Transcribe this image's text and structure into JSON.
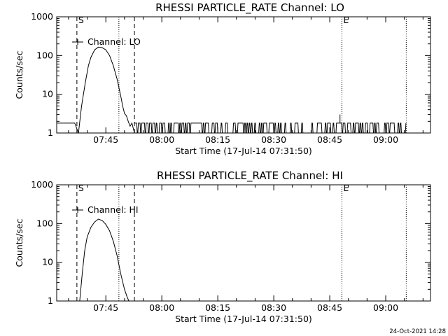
{
  "footer_timestamp": "24-Oct-2021 14:28",
  "chart_data": [
    {
      "type": "line",
      "title": "RHESSI PARTICLE_RATE Channel: LO",
      "xlabel": "Start Time (17-Jul-14 07:31:50)",
      "ylabel": "Counts/sec",
      "yscale": "log",
      "xlim": [
        "07:31:50",
        "09:12:00"
      ],
      "ylim": [
        1,
        1000
      ],
      "x_ticks": [
        "07:45",
        "08:00",
        "08:15",
        "08:30",
        "08:45",
        "09:00"
      ],
      "y_ticks": [
        "1",
        "10",
        "100",
        "1000"
      ],
      "markers": [
        {
          "time": "07:37:15",
          "label": "S",
          "style": "dashed"
        },
        {
          "time": "07:48:30",
          "label": "",
          "style": "dotted"
        },
        {
          "time": "07:52:40",
          "label": "",
          "style": "dashed"
        },
        {
          "time": "08:48:15",
          "label": "E",
          "style": "dotted"
        },
        {
          "time": "09:05:30",
          "label": "",
          "style": "dotted"
        }
      ],
      "legend": "Channel: LO",
      "series": [
        {
          "name": "Channel: LO",
          "burst": {
            "time": [
              "07:31:50",
              "07:34:00",
              "07:36:40",
              "07:37:40",
              "07:38:30",
              "07:39:30",
              "07:40:20",
              "07:41:00",
              "07:42:00",
              "07:43:00",
              "07:44:00",
              "07:45:00",
              "07:46:00",
              "07:47:00",
              "07:48:00",
              "07:49:00",
              "07:49:30",
              "07:50:00",
              "07:50:30",
              "07:51:00",
              "07:51:30",
              "07:52:00",
              "07:52:40"
            ],
            "counts": [
              1.8,
              1.8,
              1.8,
              1.0,
              5,
              20,
              55,
              90,
              140,
              165,
              160,
              140,
              100,
              55,
              25,
              9,
              5,
              3.2,
              2.8,
              2,
              1.5,
              1.8,
              1.0
            ]
          },
          "background_levels": [
            1.0,
            1.8
          ],
          "background_range": [
            "07:52:40",
            "09:05:30"
          ],
          "spike": {
            "time": "08:47:45",
            "counts": 3.0
          }
        }
      ]
    },
    {
      "type": "line",
      "title": "RHESSI PARTICLE_RATE Channel: HI",
      "xlabel": "Start Time (17-Jul-14 07:31:50)",
      "ylabel": "Counts/sec",
      "yscale": "log",
      "xlim": [
        "07:31:50",
        "09:12:00"
      ],
      "ylim": [
        1,
        1000
      ],
      "x_ticks": [
        "07:45",
        "08:00",
        "08:15",
        "08:30",
        "08:45",
        "09:00"
      ],
      "y_ticks": [
        "1",
        "10",
        "100",
        "1000"
      ],
      "markers": [
        {
          "time": "07:37:15",
          "label": "S",
          "style": "dashed"
        },
        {
          "time": "07:48:30",
          "label": "",
          "style": "dotted"
        },
        {
          "time": "07:52:40",
          "label": "",
          "style": "dashed"
        },
        {
          "time": "08:48:15",
          "label": "E",
          "style": "dotted"
        },
        {
          "time": "09:05:30",
          "label": "",
          "style": "dotted"
        }
      ],
      "legend": "Channel: HI",
      "series": [
        {
          "name": "Channel: HI",
          "burst": {
            "time": [
              "07:38:00",
              "07:38:40",
              "07:39:20",
              "07:40:00",
              "07:41:00",
              "07:42:00",
              "07:43:00",
              "07:44:00",
              "07:45:00",
              "07:46:00",
              "07:47:00",
              "07:48:00",
              "07:49:00",
              "07:50:00",
              "07:50:40",
              "07:51:10"
            ],
            "counts": [
              1.0,
              5,
              20,
              45,
              80,
              110,
              130,
              120,
              95,
              65,
              35,
              15,
              5,
              2,
              1.3,
              1.0
            ]
          }
        }
      ]
    }
  ]
}
